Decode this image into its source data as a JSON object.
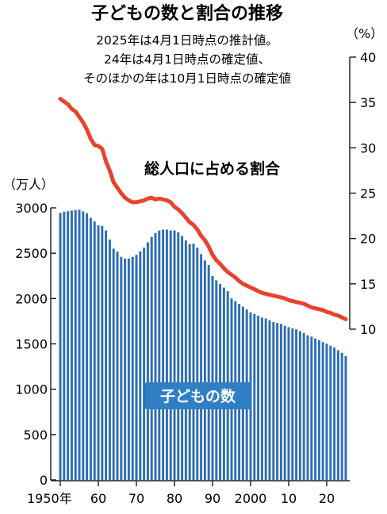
{
  "chart_data": {
    "type": "bar",
    "title": "子どもの数と割合の推移",
    "subtitle_lines": [
      "2025年は4月1日時点の推計値。",
      "24年は4月1日時点の確定値、",
      "そのほかの年は10月1日時点の確定値"
    ],
    "y_left": {
      "unit": "（万人）",
      "ticks": [
        "0",
        "500",
        "1000",
        "1500",
        "2000",
        "2500",
        "3000"
      ],
      "range": [
        0,
        3000
      ]
    },
    "y_right": {
      "unit": "（%）",
      "ticks": [
        "10",
        "15",
        "20",
        "25",
        "30",
        "35",
        "40"
      ],
      "range": [
        10,
        40
      ]
    },
    "x_ticks": [
      {
        "year": 1950,
        "label": "1950年"
      },
      {
        "year": 1960,
        "label": "60"
      },
      {
        "year": 1970,
        "label": "70"
      },
      {
        "year": 1980,
        "label": "80"
      },
      {
        "year": 1990,
        "label": "90"
      },
      {
        "year": 2000,
        "label": "2000"
      },
      {
        "year": 2010,
        "label": "10"
      },
      {
        "year": 2020,
        "label": "20"
      }
    ],
    "years": [
      1950,
      1951,
      1952,
      1953,
      1954,
      1955,
      1956,
      1957,
      1958,
      1959,
      1960,
      1961,
      1962,
      1963,
      1964,
      1965,
      1966,
      1967,
      1968,
      1969,
      1970,
      1971,
      1972,
      1973,
      1974,
      1975,
      1976,
      1977,
      1978,
      1979,
      1980,
      1981,
      1982,
      1983,
      1984,
      1985,
      1986,
      1987,
      1988,
      1989,
      1990,
      1991,
      1992,
      1993,
      1994,
      1995,
      1996,
      1997,
      1998,
      1999,
      2000,
      2001,
      2002,
      2003,
      2004,
      2005,
      2006,
      2007,
      2008,
      2009,
      2010,
      2011,
      2012,
      2013,
      2014,
      2015,
      2016,
      2017,
      2018,
      2019,
      2020,
      2021,
      2022,
      2023,
      2024,
      2025
    ],
    "series": [
      {
        "name": "子どもの数",
        "kind": "bar",
        "axis": "left",
        "color": "#2f6fb6",
        "values": [
          2943,
          2957,
          2963,
          2970,
          2975,
          2980,
          2960,
          2940,
          2890,
          2850,
          2807,
          2800,
          2750,
          2650,
          2550,
          2517,
          2460,
          2440,
          2440,
          2460,
          2482,
          2520,
          2560,
          2620,
          2680,
          2722,
          2750,
          2760,
          2760,
          2750,
          2751,
          2730,
          2690,
          2640,
          2600,
          2604,
          2560,
          2490,
          2420,
          2370,
          2249,
          2200,
          2160,
          2120,
          2080,
          2001,
          1970,
          1940,
          1910,
          1880,
          1847,
          1830,
          1810,
          1790,
          1780,
          1759,
          1740,
          1730,
          1720,
          1700,
          1684,
          1670,
          1660,
          1640,
          1620,
          1595,
          1580,
          1560,
          1540,
          1520,
          1503,
          1480,
          1460,
          1430,
          1401,
          1366
        ]
      },
      {
        "name": "総人口に占める割合",
        "kind": "line",
        "axis": "right",
        "color": "#e8432d",
        "values": [
          35.4,
          35.1,
          34.8,
          34.3,
          34.0,
          33.4,
          32.8,
          32.0,
          31.0,
          30.3,
          30.2,
          29.9,
          28.5,
          27.5,
          26.2,
          25.6,
          25.0,
          24.5,
          24.2,
          24.0,
          24.0,
          24.1,
          24.2,
          24.4,
          24.5,
          24.3,
          24.4,
          24.3,
          24.2,
          24.0,
          23.5,
          23.2,
          22.8,
          22.3,
          21.8,
          21.5,
          21.0,
          20.3,
          19.8,
          19.1,
          18.2,
          17.6,
          17.2,
          16.7,
          16.3,
          16.0,
          15.7,
          15.3,
          15.0,
          14.8,
          14.6,
          14.4,
          14.2,
          14.0,
          13.9,
          13.8,
          13.7,
          13.6,
          13.5,
          13.4,
          13.2,
          13.1,
          13.0,
          12.9,
          12.8,
          12.6,
          12.4,
          12.3,
          12.2,
          12.1,
          11.9,
          11.8,
          11.6,
          11.5,
          11.3,
          11.1
        ]
      }
    ],
    "annotations": {
      "line_label": "総人口に占める割合",
      "bar_label": "子どもの数",
      "badge_color": "#2f7fc4"
    },
    "grid": false
  }
}
